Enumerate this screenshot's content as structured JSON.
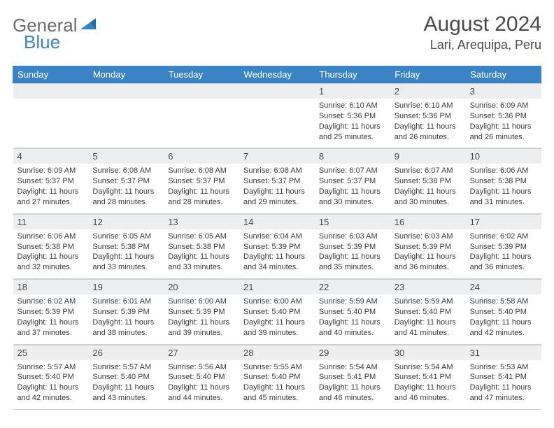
{
  "logo": {
    "part1": "General",
    "part2": "Blue"
  },
  "title": "August 2024",
  "location": "Lari, Arequipa, Peru",
  "colors": {
    "header_bg": "#3a84c5",
    "header_text": "#ffffff",
    "daynum_bg": "#eceef0",
    "text": "#4a4a4a",
    "body_text": "#3a3a3a",
    "border": "#d0d0d0",
    "page_bg": "#ffffff"
  },
  "typography": {
    "title_fontsize": 30,
    "location_fontsize": 18,
    "dayheader_fontsize": 13,
    "daynum_fontsize": 13,
    "body_fontsize": 11
  },
  "day_headers": [
    "Sunday",
    "Monday",
    "Tuesday",
    "Wednesday",
    "Thursday",
    "Friday",
    "Saturday"
  ],
  "weeks": [
    [
      null,
      null,
      null,
      null,
      {
        "n": "1",
        "sunrise": "6:10 AM",
        "sunset": "5:36 PM",
        "daylight": "11 hours and 25 minutes."
      },
      {
        "n": "2",
        "sunrise": "6:10 AM",
        "sunset": "5:36 PM",
        "daylight": "11 hours and 26 minutes."
      },
      {
        "n": "3",
        "sunrise": "6:09 AM",
        "sunset": "5:36 PM",
        "daylight": "11 hours and 26 minutes."
      }
    ],
    [
      {
        "n": "4",
        "sunrise": "6:09 AM",
        "sunset": "5:37 PM",
        "daylight": "11 hours and 27 minutes."
      },
      {
        "n": "5",
        "sunrise": "6:08 AM",
        "sunset": "5:37 PM",
        "daylight": "11 hours and 28 minutes."
      },
      {
        "n": "6",
        "sunrise": "6:08 AM",
        "sunset": "5:37 PM",
        "daylight": "11 hours and 28 minutes."
      },
      {
        "n": "7",
        "sunrise": "6:08 AM",
        "sunset": "5:37 PM",
        "daylight": "11 hours and 29 minutes."
      },
      {
        "n": "8",
        "sunrise": "6:07 AM",
        "sunset": "5:37 PM",
        "daylight": "11 hours and 30 minutes."
      },
      {
        "n": "9",
        "sunrise": "6:07 AM",
        "sunset": "5:38 PM",
        "daylight": "11 hours and 30 minutes."
      },
      {
        "n": "10",
        "sunrise": "6:06 AM",
        "sunset": "5:38 PM",
        "daylight": "11 hours and 31 minutes."
      }
    ],
    [
      {
        "n": "11",
        "sunrise": "6:06 AM",
        "sunset": "5:38 PM",
        "daylight": "11 hours and 32 minutes."
      },
      {
        "n": "12",
        "sunrise": "6:05 AM",
        "sunset": "5:38 PM",
        "daylight": "11 hours and 33 minutes."
      },
      {
        "n": "13",
        "sunrise": "6:05 AM",
        "sunset": "5:38 PM",
        "daylight": "11 hours and 33 minutes."
      },
      {
        "n": "14",
        "sunrise": "6:04 AM",
        "sunset": "5:39 PM",
        "daylight": "11 hours and 34 minutes."
      },
      {
        "n": "15",
        "sunrise": "6:03 AM",
        "sunset": "5:39 PM",
        "daylight": "11 hours and 35 minutes."
      },
      {
        "n": "16",
        "sunrise": "6:03 AM",
        "sunset": "5:39 PM",
        "daylight": "11 hours and 36 minutes."
      },
      {
        "n": "17",
        "sunrise": "6:02 AM",
        "sunset": "5:39 PM",
        "daylight": "11 hours and 36 minutes."
      }
    ],
    [
      {
        "n": "18",
        "sunrise": "6:02 AM",
        "sunset": "5:39 PM",
        "daylight": "11 hours and 37 minutes."
      },
      {
        "n": "19",
        "sunrise": "6:01 AM",
        "sunset": "5:39 PM",
        "daylight": "11 hours and 38 minutes."
      },
      {
        "n": "20",
        "sunrise": "6:00 AM",
        "sunset": "5:39 PM",
        "daylight": "11 hours and 39 minutes."
      },
      {
        "n": "21",
        "sunrise": "6:00 AM",
        "sunset": "5:40 PM",
        "daylight": "11 hours and 39 minutes."
      },
      {
        "n": "22",
        "sunrise": "5:59 AM",
        "sunset": "5:40 PM",
        "daylight": "11 hours and 40 minutes."
      },
      {
        "n": "23",
        "sunrise": "5:59 AM",
        "sunset": "5:40 PM",
        "daylight": "11 hours and 41 minutes."
      },
      {
        "n": "24",
        "sunrise": "5:58 AM",
        "sunset": "5:40 PM",
        "daylight": "11 hours and 42 minutes."
      }
    ],
    [
      {
        "n": "25",
        "sunrise": "5:57 AM",
        "sunset": "5:40 PM",
        "daylight": "11 hours and 42 minutes."
      },
      {
        "n": "26",
        "sunrise": "5:57 AM",
        "sunset": "5:40 PM",
        "daylight": "11 hours and 43 minutes."
      },
      {
        "n": "27",
        "sunrise": "5:56 AM",
        "sunset": "5:40 PM",
        "daylight": "11 hours and 44 minutes."
      },
      {
        "n": "28",
        "sunrise": "5:55 AM",
        "sunset": "5:40 PM",
        "daylight": "11 hours and 45 minutes."
      },
      {
        "n": "29",
        "sunrise": "5:54 AM",
        "sunset": "5:41 PM",
        "daylight": "11 hours and 46 minutes."
      },
      {
        "n": "30",
        "sunrise": "5:54 AM",
        "sunset": "5:41 PM",
        "daylight": "11 hours and 46 minutes."
      },
      {
        "n": "31",
        "sunrise": "5:53 AM",
        "sunset": "5:41 PM",
        "daylight": "11 hours and 47 minutes."
      }
    ]
  ],
  "labels": {
    "sunrise": "Sunrise:",
    "sunset": "Sunset:",
    "daylight": "Daylight:"
  }
}
